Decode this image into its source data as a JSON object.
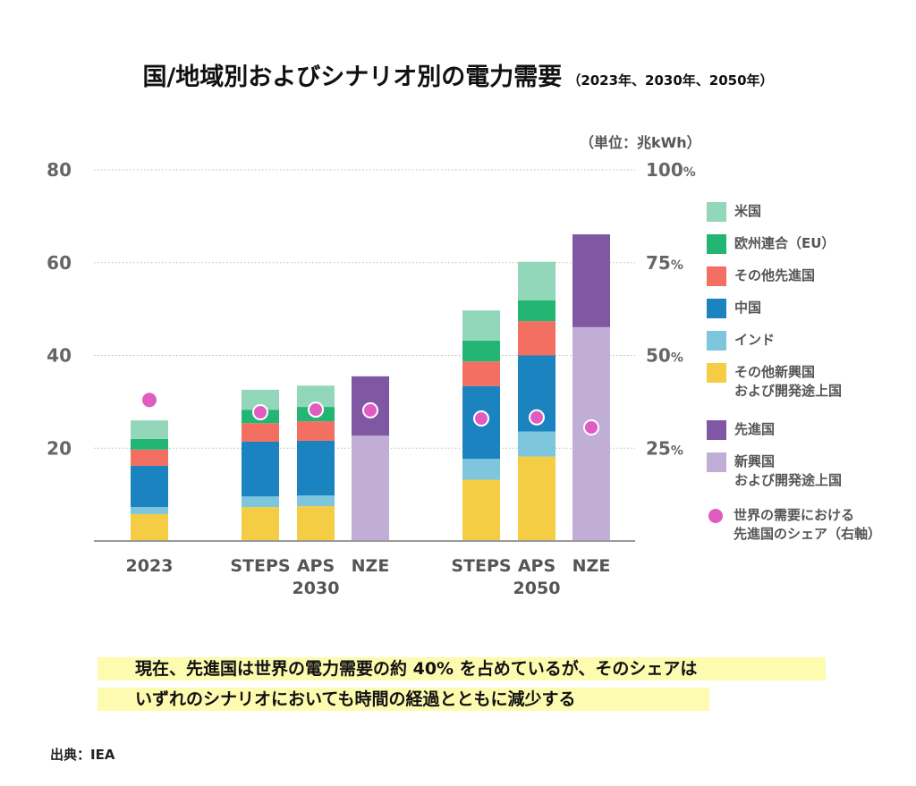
{
  "chart_data": {
    "type": "bar",
    "stacked": true,
    "title": "国/地域別およびシナリオ別の電力需要",
    "subtitle": "（2023年、2030年、2050年）",
    "unit_label": "（単位：兆kWh）",
    "categories": [
      "2023",
      "STEPS",
      "APS",
      "NZE",
      "STEPS",
      "APS",
      "NZE"
    ],
    "group_labels": [
      {
        "label": "2023",
        "members": [
          0
        ]
      },
      {
        "label": "2030",
        "members": [
          1,
          2,
          3
        ],
        "under": 2
      },
      {
        "label": "2050",
        "members": [
          4,
          5,
          6
        ],
        "under": 5
      }
    ],
    "ylim": [
      0,
      80
    ],
    "yticks": [
      20,
      40,
      60,
      80
    ],
    "y2lim": [
      0,
      100
    ],
    "y2ticks": [
      "25%",
      "50%",
      "75%",
      "100%"
    ],
    "grid": true,
    "legend_position": "right",
    "series": [
      {
        "name": "その他新興国\nおよび開発途上国",
        "color": "#f5cd45",
        "values": [
          5.8,
          7.3,
          7.5,
          null,
          13.2,
          18.2,
          null
        ]
      },
      {
        "name": "インド",
        "color": "#7ec6dc",
        "values": [
          1.5,
          2.3,
          2.3,
          null,
          4.5,
          5.4,
          null
        ]
      },
      {
        "name": "中国",
        "color": "#1b84c0",
        "values": [
          8.9,
          11.8,
          11.8,
          null,
          15.7,
          16.4,
          null
        ]
      },
      {
        "name": "その他先進国",
        "color": "#f36f61",
        "values": [
          3.5,
          4.0,
          4.2,
          null,
          5.3,
          7.4,
          null
        ]
      },
      {
        "name": "欧州連合（EU）",
        "color": "#22b573",
        "values": [
          2.3,
          2.9,
          3.1,
          null,
          4.5,
          4.5,
          null
        ]
      },
      {
        "name": "米国",
        "color": "#93d7bb",
        "values": [
          4.0,
          4.3,
          4.6,
          null,
          6.5,
          8.3,
          null
        ]
      },
      {
        "name": "新興国\nおよび開発途上国",
        "color": "#c0aed6",
        "values": [
          null,
          null,
          null,
          22.7,
          null,
          null,
          46.1
        ]
      },
      {
        "name": "先進国",
        "color": "#7f57a3",
        "values": [
          null,
          null,
          null,
          12.8,
          null,
          null,
          20.0
        ]
      }
    ],
    "share_series": {
      "name": "世界の需要における\n先進国のシェア（右軸）",
      "color": "#e05cc0",
      "unit": "%",
      "values": [
        38,
        34.7,
        35.4,
        35.2,
        33.0,
        33.3,
        30.6
      ]
    },
    "legend_order": [
      5,
      4,
      3,
      2,
      1,
      0,
      7,
      6
    ]
  },
  "highlight": {
    "line1": "現在、先進国は世界の電力需要の約 40% を占めているが、そのシェアは",
    "line2": "いずれのシナリオにおいても時間の経過とともに減少する"
  },
  "source": "出典：IEA"
}
